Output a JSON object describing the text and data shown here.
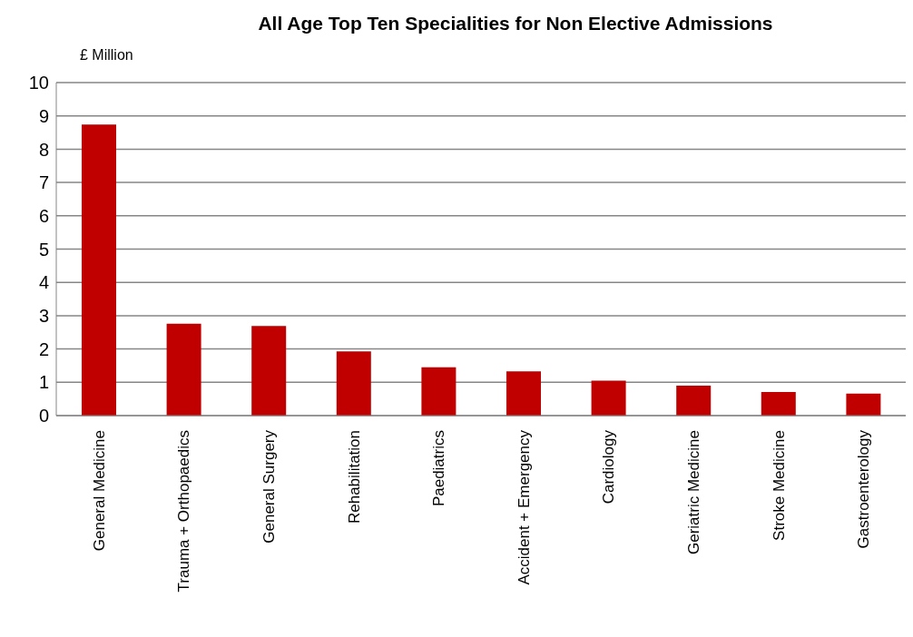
{
  "chart_data": {
    "type": "bar",
    "title": "All Age Top Ten Specialities for Non Elective Admissions",
    "ylabel": "£ Million",
    "categories": [
      "General Medicine",
      "Trauma + Orthopaedics",
      "General Surgery",
      "Rehabilitation",
      "Paediatrics",
      "Accident + Emergency",
      "Cardiology",
      "Geriatric Medicine",
      "Stroke Medicine",
      "Gastroenterology"
    ],
    "values": [
      8.74,
      2.76,
      2.69,
      1.93,
      1.45,
      1.33,
      1.05,
      0.9,
      0.71,
      0.66
    ],
    "color": "#c00000",
    "ylim": [
      0,
      10
    ],
    "yticks": [
      0,
      1,
      2,
      3,
      4,
      5,
      6,
      7,
      8,
      9,
      10
    ],
    "grid": "y",
    "legend": false
  }
}
